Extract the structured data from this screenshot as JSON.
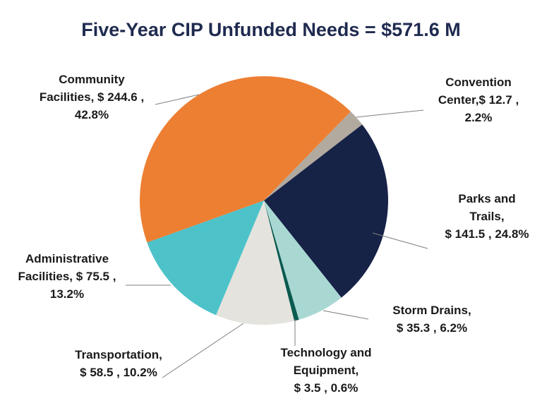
{
  "chart_data": {
    "type": "pie",
    "title": "Five-Year CIP Unfunded Needs = $571.6 M",
    "slices": [
      {
        "name": "Convention Center",
        "value": 12.7,
        "percent": 2.2,
        "color": "#B2AA9F",
        "label": [
          "Convention",
          "Center,$ 12.7 ,",
          "2.2%"
        ]
      },
      {
        "name": "Parks and Trails",
        "value": 141.5,
        "percent": 24.8,
        "color": "#172247",
        "label": [
          "Parks and",
          "Trails,",
          "$ 141.5 , 24.8%"
        ]
      },
      {
        "name": "Storm Drains",
        "value": 35.3,
        "percent": 6.2,
        "color": "#A9D8D3",
        "label": [
          "Storm Drains,",
          "$ 35.3 , 6.2%"
        ]
      },
      {
        "name": "Technology and Equipment",
        "value": 3.5,
        "percent": 0.6,
        "color": "#0B5A50",
        "label": [
          "Technology and",
          "Equipment,",
          "$ 3.5 , 0.6%"
        ]
      },
      {
        "name": "Transportation",
        "value": 58.5,
        "percent": 10.2,
        "color": "#E5E3DE",
        "label": [
          "Transportation,",
          "$ 58.5 , 10.2%"
        ]
      },
      {
        "name": "Administrative Facilities",
        "value": 75.5,
        "percent": 13.2,
        "color": "#4DC2C9",
        "label": [
          "Administrative",
          "Facilities, $ 75.5 ,",
          "13.2%"
        ]
      },
      {
        "name": "Community Facilities",
        "value": 244.6,
        "percent": 42.8,
        "color": "#ED7F33",
        "label": [
          "Community",
          "Facilities, $ 244.6 ,",
          "42.8%"
        ]
      }
    ],
    "legend": "none"
  }
}
